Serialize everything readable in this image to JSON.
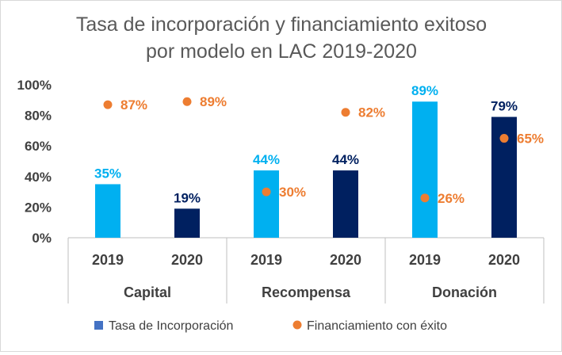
{
  "chart_data": {
    "type": "bar",
    "title_lines": [
      "Tasa de incorporación  y financiamiento exitoso",
      "por modelo en LAC 2019-2020"
    ],
    "groups": [
      "Capital",
      "Recompensa",
      "Donación"
    ],
    "years": [
      "2019",
      "2020"
    ],
    "categories": [
      "Capital 2019",
      "Capital 2020",
      "Recompensa 2019",
      "Recompensa 2020",
      "Donación 2019",
      "Donación 2020"
    ],
    "series": [
      {
        "name": "Tasa de Incorporación",
        "kind": "bar",
        "values": [
          35,
          19,
          44,
          44,
          89,
          79
        ],
        "labels": [
          "35%",
          "19%",
          "44%",
          "44%",
          "89%",
          "79%"
        ],
        "colors": [
          "#00B0F0",
          "#002060",
          "#00B0F0",
          "#002060",
          "#00B0F0",
          "#002060"
        ]
      },
      {
        "name": "Financiamiento con éxito",
        "kind": "marker",
        "values": [
          87,
          89,
          30,
          82,
          26,
          65
        ],
        "labels": [
          "87%",
          "89%",
          "30%",
          "82%",
          "26%",
          "65%"
        ],
        "color": "#ED7D31"
      }
    ],
    "yticks": [
      "0%",
      "20%",
      "40%",
      "60%",
      "80%",
      "100%"
    ],
    "ylim": [
      0,
      100
    ],
    "legend": [
      {
        "label": "Tasa de Incorporación",
        "color": "#4472C4",
        "shape": "square"
      },
      {
        "label": "Financiamiento con éxito",
        "color": "#ED7D31",
        "shape": "circle"
      }
    ],
    "legend_position": "bottom"
  }
}
